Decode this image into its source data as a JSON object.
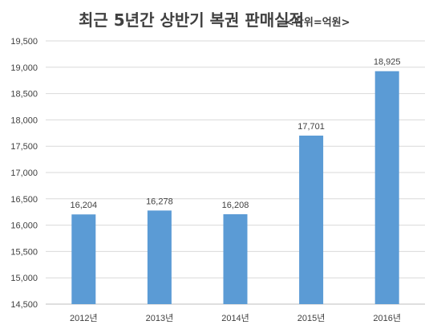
{
  "chart_data": {
    "type": "bar",
    "title": "최근 5년간 상반기 복권 판매실적",
    "unit_label": "<단위=억원>",
    "categories": [
      "2012년",
      "2013년",
      "2014년",
      "2015년",
      "2016년"
    ],
    "values": [
      16204,
      16278,
      16208,
      17701,
      18925
    ],
    "value_labels": [
      "16,204",
      "16,278",
      "16,208",
      "17,701",
      "18,925"
    ],
    "ylim": [
      14500,
      19500
    ],
    "y_ticks": [
      14500,
      15000,
      15500,
      16000,
      16500,
      17000,
      17500,
      18000,
      18500,
      19000,
      19500
    ],
    "y_tick_labels": [
      "14,500",
      "15,000",
      "15,500",
      "16,000",
      "16,500",
      "17,000",
      "17,500",
      "18,000",
      "18,500",
      "19,000",
      "19,500"
    ],
    "xlabel": "",
    "ylabel": "",
    "grid": true,
    "legend": "none",
    "bar_color": "#5b9bd5"
  }
}
